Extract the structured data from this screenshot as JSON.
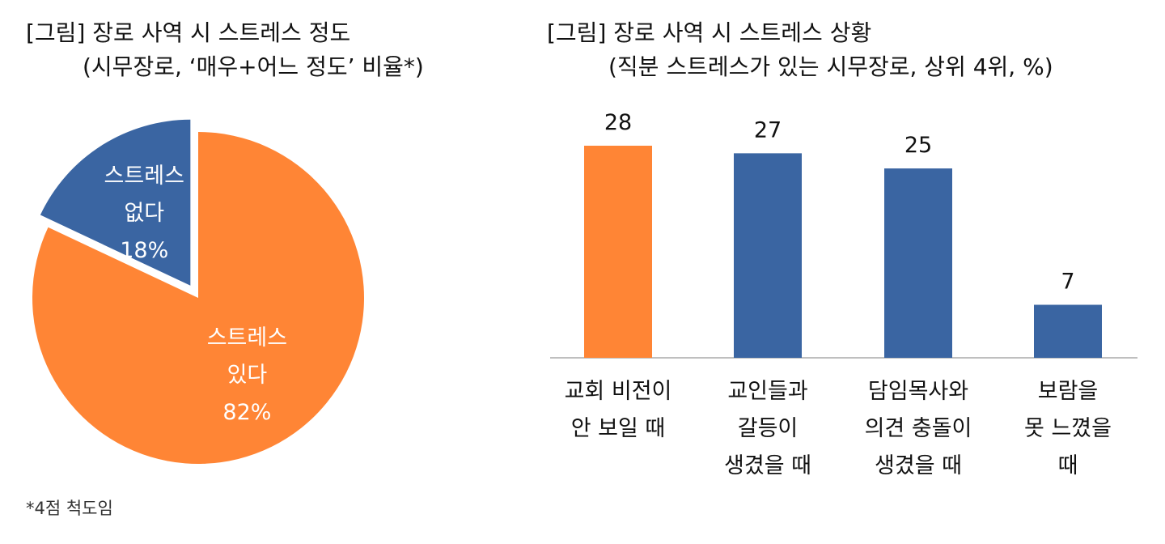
{
  "chart_data": [
    {
      "type": "pie",
      "title_line1": "[그림] 장로 사역 시 스트레스 정도",
      "title_line2": "(시무장로, ‘매우+어느 정도’ 비율*)",
      "slices": [
        {
          "label_line1": "스트레스",
          "label_line2": "있다",
          "value": 82,
          "value_label": "82%",
          "color": "#FF8535"
        },
        {
          "label_line1": "스트레스",
          "label_line2": "없다",
          "value": 18,
          "value_label": "18%",
          "color": "#3A65A2"
        }
      ],
      "exploded_slice": "스트레스 없다"
    },
    {
      "type": "bar",
      "title_line1": "[그림] 장로 사역 시 스트레스 상황",
      "title_line2": "(직분 스트레스가 있는 시무장로, 상위 4위, %)",
      "categories": [
        {
          "lines": [
            "교회 비전이",
            "안 보일 때"
          ]
        },
        {
          "lines": [
            "교인들과",
            "갈등이",
            "생겼을 때"
          ]
        },
        {
          "lines": [
            "담임목사와",
            "의견 충돌이",
            "생겼을 때"
          ]
        },
        {
          "lines": [
            "보람을",
            "못 느꼈을",
            "때"
          ]
        }
      ],
      "values": [
        28,
        27,
        25,
        7
      ],
      "value_labels": [
        "28",
        "27",
        "25",
        "7"
      ],
      "colors": [
        "#FF8535",
        "#3A65A2",
        "#3A65A2",
        "#3A65A2"
      ],
      "ylim": [
        0,
        28
      ]
    }
  ],
  "footnote": "*4점 척도임"
}
